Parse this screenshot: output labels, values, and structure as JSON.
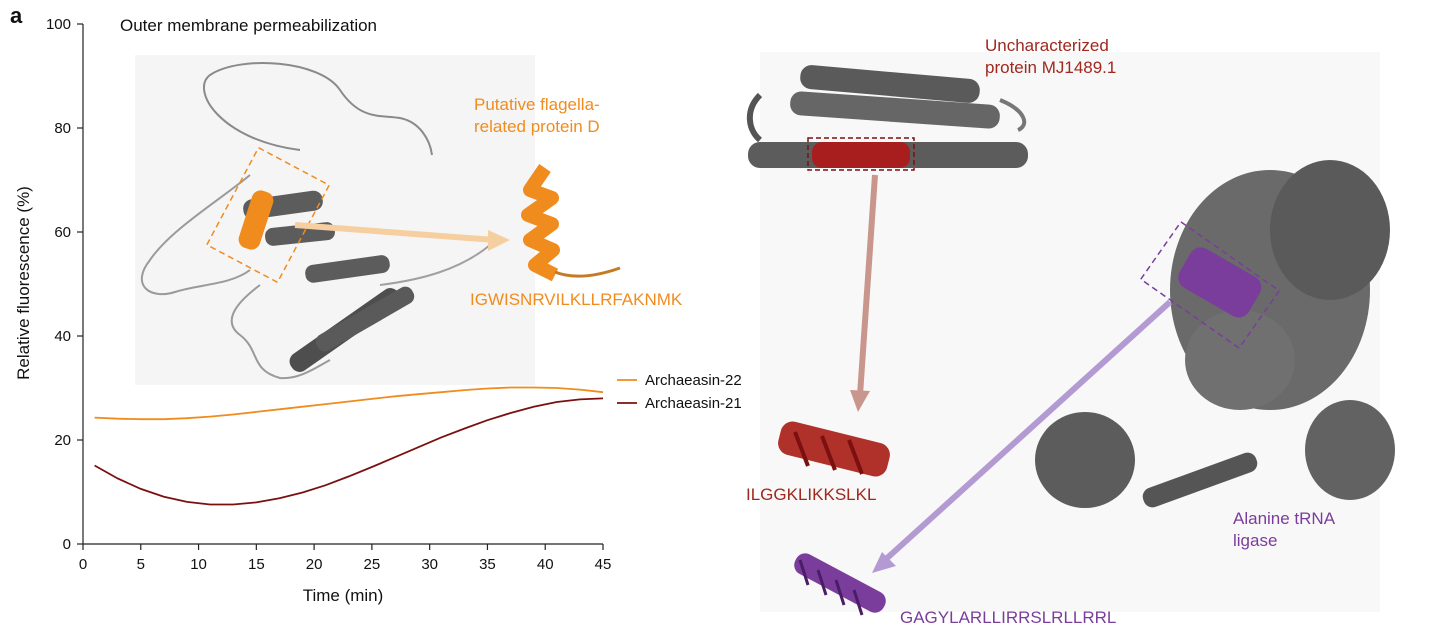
{
  "panel_label": "a",
  "chart_data": {
    "type": "line",
    "title": "Outer membrane permeabilization",
    "xlabel": "Time (min)",
    "ylabel": "Relative fluorescence (%)",
    "xlim": [
      0,
      45
    ],
    "ylim": [
      0,
      100
    ],
    "xticks": [
      0,
      5,
      10,
      15,
      20,
      25,
      30,
      35,
      40,
      45
    ],
    "yticks": [
      0,
      20,
      40,
      60,
      80,
      100
    ],
    "grid": false,
    "legend_position": "right",
    "series": [
      {
        "name": "Archaeasin-22",
        "color": "#f08c1e",
        "x": [
          1,
          3,
          5,
          7,
          9,
          11,
          13,
          15,
          17,
          19,
          21,
          23,
          25,
          27,
          29,
          31,
          33,
          35,
          37,
          39,
          41,
          43,
          45
        ],
        "y": [
          24.3,
          24.1,
          24.0,
          24.0,
          24.2,
          24.5,
          24.9,
          25.4,
          25.9,
          26.4,
          26.9,
          27.4,
          27.9,
          28.4,
          28.8,
          29.2,
          29.6,
          29.9,
          30.1,
          30.1,
          30.0,
          29.7,
          29.2
        ]
      },
      {
        "name": "Archaeasin-21",
        "color": "#7b1010",
        "x": [
          1,
          3,
          5,
          7,
          9,
          11,
          13,
          15,
          17,
          19,
          21,
          23,
          25,
          27,
          29,
          31,
          33,
          35,
          37,
          39,
          41,
          43,
          45
        ],
        "y": [
          15.1,
          12.6,
          10.6,
          9.1,
          8.1,
          7.6,
          7.6,
          8.0,
          8.8,
          9.9,
          11.3,
          13.0,
          14.8,
          16.7,
          18.6,
          20.5,
          22.2,
          23.8,
          25.2,
          26.4,
          27.3,
          27.8,
          28.0
        ]
      }
    ]
  },
  "annotations": {
    "flagella_protein": "Putative flagella-\nrelated protein D",
    "flagella_peptide": "IGWISNRVILKLLRFAKNMK",
    "mj_protein": "Uncharacterized\nprotein MJ1489.1",
    "mj_peptide": "ILGGKLIKKSLKL",
    "ala_protein": "Alanine tRNA\nligase",
    "ala_peptide": "GAGYLARLLIRRSLRLLRRL"
  },
  "colors": {
    "orange": "#f08c1e",
    "orange_light": "#f6cfa0",
    "dark_red": "#7b1010",
    "red_peptide": "#b0302a",
    "rose_arrow": "#c9968e",
    "purple": "#7a3d9c",
    "purple_arrow": "#b49ad3",
    "protein_gray": "#5c5c5c",
    "axis": "#222222"
  }
}
